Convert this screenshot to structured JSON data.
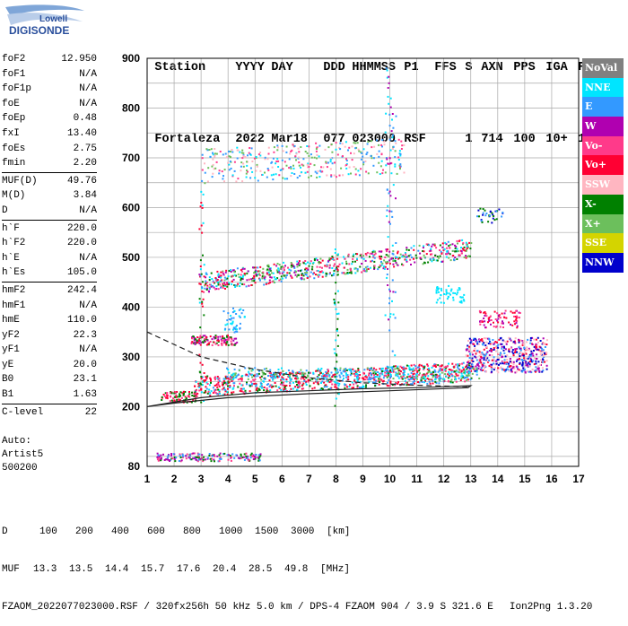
{
  "logo": {
    "line1": "Lowell",
    "line2": "DIGISONDE"
  },
  "header": {
    "labels": [
      "Station",
      "YYYY",
      "DAY",
      "DDD",
      "HHMMSS",
      "P1",
      "FFS",
      "S",
      "AXN",
      "PPS",
      "IGA",
      "PS"
    ],
    "values": [
      "Fortaleza",
      "2022",
      "Mar18",
      "077",
      "023000",
      "RSF",
      "",
      "1",
      "714",
      "100",
      "10+",
      "11"
    ]
  },
  "params_groups": [
    [
      {
        "name": "foF2",
        "value": "12.950"
      },
      {
        "name": "foF1",
        "value": "N/A"
      },
      {
        "name": "foF1p",
        "value": "N/A"
      },
      {
        "name": "foE",
        "value": "N/A"
      },
      {
        "name": "foEp",
        "value": "0.48"
      },
      {
        "name": "fxI",
        "value": "13.40"
      },
      {
        "name": "foEs",
        "value": "2.75"
      },
      {
        "name": "fmin",
        "value": "2.20"
      }
    ],
    [
      {
        "name": "MUF(D)",
        "value": "49.76"
      },
      {
        "name": "M(D)",
        "value": "3.84"
      },
      {
        "name": "D",
        "value": "N/A"
      }
    ],
    [
      {
        "name": "h`F",
        "value": "220.0"
      },
      {
        "name": "h`F2",
        "value": "220.0"
      },
      {
        "name": "h`E",
        "value": "N/A"
      },
      {
        "name": "h`Es",
        "value": "105.0"
      }
    ],
    [
      {
        "name": "hmF2",
        "value": "242.4"
      },
      {
        "name": "hmF1",
        "value": "N/A"
      },
      {
        "name": "hmE",
        "value": "110.0"
      },
      {
        "name": "yF2",
        "value": "22.3"
      },
      {
        "name": "yF1",
        "value": "N/A"
      },
      {
        "name": "yE",
        "value": "20.0"
      },
      {
        "name": "B0",
        "value": "23.1"
      },
      {
        "name": "B1",
        "value": "1.63"
      }
    ],
    [
      {
        "name": "C-level",
        "value": "22"
      }
    ]
  ],
  "auto": {
    "line1": "Auto:",
    "line2": "Artist5",
    "line3": "500200"
  },
  "footer": {
    "d_label": "D",
    "d_values": [
      "100",
      "200",
      "400",
      "600",
      "800",
      "1000",
      "1500",
      "3000"
    ],
    "d_unit": "[km]",
    "muf_label": "MUF",
    "muf_values": [
      "13.3",
      "13.5",
      "14.4",
      "15.7",
      "17.6",
      "20.4",
      "28.5",
      "49.8"
    ],
    "muf_unit": "[MHz]",
    "info": "FZAOM_2022077023000.RSF / 320fx256h 50 kHz 5.0 km / DPS-4 FZAOM 904 / 3.9 S 321.6 E",
    "version": "Ion2Png 1.3.20"
  },
  "legend": [
    {
      "label": "NoVal",
      "color": "#808080",
      "text": "#ffffff"
    },
    {
      "label": "NNE",
      "color": "#00e5ff",
      "text": "#ffffff"
    },
    {
      "label": "E",
      "color": "#3399ff",
      "text": "#ffffff"
    },
    {
      "label": "W",
      "color": "#b000b0",
      "text": "#ffffff"
    },
    {
      "label": "Vo-",
      "color": "#ff3a8a",
      "text": "#ffffff"
    },
    {
      "label": "Vo+",
      "color": "#ff0033",
      "text": "#ffffff"
    },
    {
      "label": "SSW",
      "color": "#ffb6c1",
      "text": "#ffffff"
    },
    {
      "label": "X-",
      "color": "#008000",
      "text": "#ffffff"
    },
    {
      "label": "X+",
      "color": "#6cbf5c",
      "text": "#ffffff"
    },
    {
      "label": "SSE",
      "color": "#d4d400",
      "text": "#ffffff"
    },
    {
      "label": "NNW",
      "color": "#0000cc",
      "text": "#ffffff"
    }
  ],
  "chart_data": {
    "type": "scatter",
    "title": "",
    "xlabel": "",
    "ylabel": "",
    "xlim": [
      1,
      17
    ],
    "ylim": [
      80,
      900
    ],
    "x_ticks": [
      1,
      2,
      3,
      4,
      5,
      6,
      7,
      8,
      9,
      10,
      11,
      12,
      13,
      14,
      15,
      16,
      17
    ],
    "y_ticks": [
      80,
      200,
      300,
      400,
      500,
      600,
      700,
      800,
      900
    ],
    "grid": true,
    "legend_position": "right",
    "traces": [
      {
        "name": "fit_upper",
        "style": "dashed",
        "points": [
          [
            1,
            350
          ],
          [
            3,
            300
          ],
          [
            5,
            275
          ],
          [
            7,
            258
          ],
          [
            9,
            248
          ],
          [
            11,
            243
          ],
          [
            13,
            240
          ]
        ]
      },
      {
        "name": "fit_lower",
        "style": "solid",
        "points": [
          [
            1,
            200
          ],
          [
            3,
            218
          ],
          [
            5,
            228
          ],
          [
            7,
            232
          ],
          [
            9,
            236
          ],
          [
            11,
            238
          ],
          [
            13,
            242
          ],
          [
            12.9,
            238
          ],
          [
            10,
            232
          ],
          [
            7,
            226
          ],
          [
            4,
            218
          ],
          [
            2,
            207
          ],
          [
            1,
            200
          ]
        ]
      }
    ],
    "echo_clusters": [
      {
        "xr": [
          2.7,
          13.0
        ],
        "hr": [
          222,
          262
        ],
        "hslope": 30,
        "n": 900,
        "colors": [
          "#ff0033",
          "#ff0033",
          "#ff3a8a",
          "#3399ff",
          "#008000",
          "#00e5ff"
        ]
      },
      {
        "xr": [
          1.5,
          2.8
        ],
        "hr": [
          210,
          232
        ],
        "hslope": 0,
        "n": 90,
        "colors": [
          "#ff0033",
          "#008000",
          "#ff3a8a"
        ]
      },
      {
        "xr": [
          12.8,
          15.8
        ],
        "hr": [
          270,
          340
        ],
        "hslope": 0,
        "n": 500,
        "colors": [
          "#0000cc",
          "#b000b0",
          "#3399ff",
          "#ff0033",
          "#ffb6c1"
        ]
      },
      {
        "xr": [
          3.9,
          13.3
        ],
        "hr": [
          255,
          280
        ],
        "hslope": 0,
        "n": 220,
        "colors": [
          "#00e5ff",
          "#3399ff",
          "#6cbf5c"
        ]
      },
      {
        "xr": [
          2.9,
          13.0
        ],
        "hr": [
          430,
          470
        ],
        "hslope": 70,
        "n": 700,
        "colors": [
          "#00e5ff",
          "#008000",
          "#ff0033",
          "#3399ff",
          "#b000b0",
          "#ff3a8a",
          "#6cbf5c"
        ]
      },
      {
        "xr": [
          3.0,
          10.5
        ],
        "hr": [
          650,
          720
        ],
        "hslope": 20,
        "n": 360,
        "colors": [
          "#00e5ff",
          "#6cbf5c",
          "#ff3a8a",
          "#3399ff",
          "#ffb6c1"
        ]
      },
      {
        "xr": [
          1.3,
          5.2
        ],
        "hr": [
          92,
          108
        ],
        "hslope": 0,
        "n": 170,
        "colors": [
          "#b000b0",
          "#008000",
          "#ff3a8a",
          "#3399ff"
        ]
      },
      {
        "xr": [
          2.6,
          4.3
        ],
        "hr": [
          325,
          345
        ],
        "hslope": 0,
        "n": 120,
        "colors": [
          "#ff3a8a",
          "#ff0033",
          "#008000",
          "#b000b0"
        ]
      },
      {
        "xr": [
          3.8,
          4.6
        ],
        "hr": [
          350,
          400
        ],
        "hslope": 0,
        "n": 45,
        "colors": [
          "#00e5ff",
          "#3399ff"
        ]
      },
      {
        "xr": [
          13.3,
          14.8
        ],
        "hr": [
          360,
          395
        ],
        "hslope": 0,
        "n": 80,
        "colors": [
          "#b000b0",
          "#ff0033",
          "#ff3a8a"
        ]
      },
      {
        "xr": [
          11.6,
          12.8
        ],
        "hr": [
          410,
          445
        ],
        "hslope": 0,
        "n": 50,
        "colors": [
          "#00e5ff"
        ]
      },
      {
        "xr": [
          13.2,
          14.2
        ],
        "hr": [
          570,
          600
        ],
        "hslope": 0,
        "n": 35,
        "colors": [
          "#3399ff",
          "#0000cc",
          "#008000"
        ]
      },
      {
        "xr": [
          9.8,
          10.2
        ],
        "hr": [
          300,
          890
        ],
        "hslope": 0,
        "n": 70,
        "colors": [
          "#3399ff",
          "#00e5ff",
          "#b000b0"
        ]
      },
      {
        "xr": [
          7.9,
          8.1
        ],
        "hr": [
          200,
          520
        ],
        "hslope": 0,
        "n": 40,
        "colors": [
          "#008000",
          "#00e5ff"
        ]
      },
      {
        "xr": [
          2.9,
          3.1
        ],
        "hr": [
          210,
          650
        ],
        "hslope": 0,
        "n": 40,
        "colors": [
          "#008000",
          "#00e5ff",
          "#ff0033"
        ]
      }
    ]
  }
}
